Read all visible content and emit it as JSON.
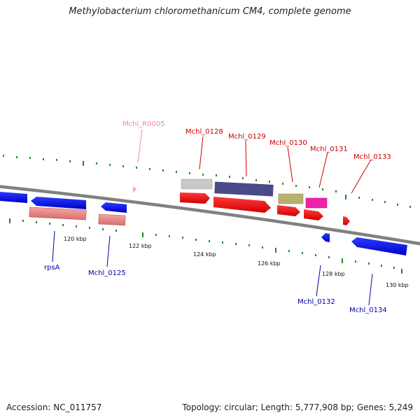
{
  "title": "Methylobacterium chloromethanicum CM4, complete genome",
  "footer": {
    "accession": "Accession: NC_011757",
    "summary": "Topology: circular; Length: 5,777,908 bp; Genes: 5,249"
  },
  "colors": {
    "backbone": "#808080",
    "tick": "#228B22",
    "plus_label": "#cc0000",
    "minus_label": "#0000aa",
    "rna_label": "#ee88aa"
  },
  "ruler": [
    "120 kbp",
    "122 kbp",
    "124 kbp",
    "126 kbp",
    "128 kbp",
    "130 kbp"
  ],
  "gene_labels": {
    "plus": [
      "Mchl_R0005",
      "Mchl_0128",
      "Mchl_0129",
      "Mchl_0130",
      "Mchl_0131",
      "Mchl_0133"
    ],
    "minus": [
      "rpsA",
      "Mchl_0125",
      "Mchl_0132",
      "Mchl_0134"
    ]
  }
}
